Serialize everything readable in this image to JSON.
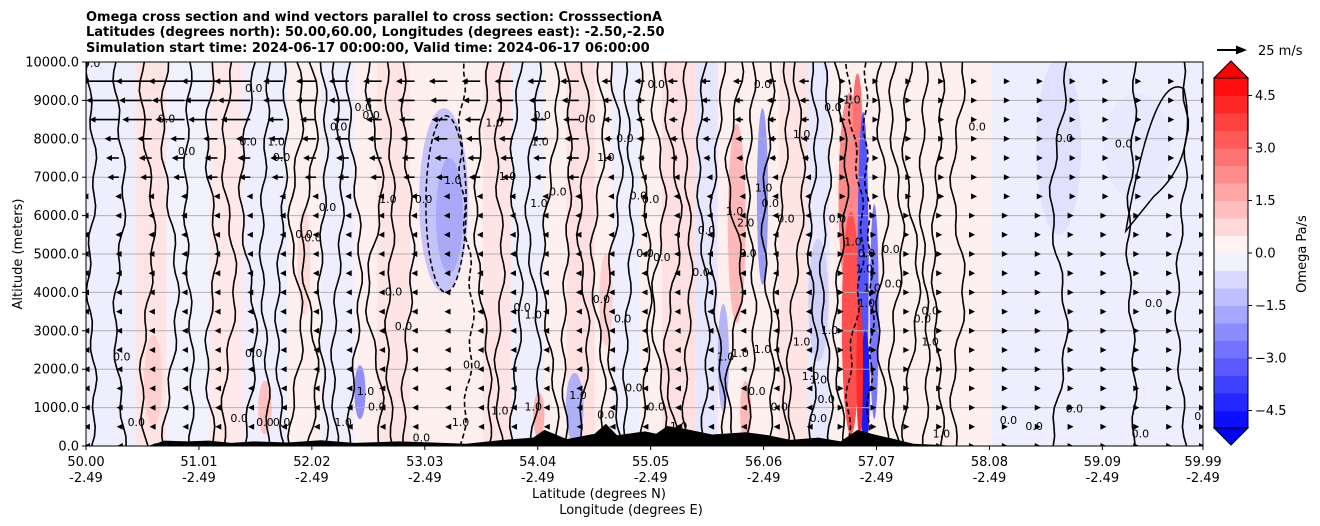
{
  "chart_data": {
    "type": "filled-contour cross section with wind vectors",
    "title_lines": [
      "Omega cross section and wind vectors parallel to cross section: CrosssectionA",
      "Latitudes (degrees north): 50.00,60.00, Longitudes (degrees east): -2.50,-2.50",
      "Simulation start time: 2024-06-17 00:00:00, Valid time: 2024-06-17 06:00:00"
    ],
    "ylabel": "Altitude (meters)",
    "xlabel_lat": "Latitude (degrees N)",
    "xlabel_lon": "Longitude (degrees E)",
    "ylim": [
      0,
      10000
    ],
    "xlim": [
      50.0,
      59.99
    ],
    "yticks": [
      "0.0",
      "1000.0",
      "2000.0",
      "3000.0",
      "4000.0",
      "5000.0",
      "6000.0",
      "7000.0",
      "8000.0",
      "9000.0",
      "10000.0"
    ],
    "xticks": [
      {
        "value": 50.0,
        "lat": "50.00",
        "lon": "-2.49"
      },
      {
        "value": 51.01,
        "lat": "51.01",
        "lon": "-2.49"
      },
      {
        "value": 52.02,
        "lat": "52.02",
        "lon": "-2.49"
      },
      {
        "value": 53.03,
        "lat": "53.03",
        "lon": "-2.49"
      },
      {
        "value": 54.04,
        "lat": "54.04",
        "lon": "-2.49"
      },
      {
        "value": 55.05,
        "lat": "55.05",
        "lon": "-2.49"
      },
      {
        "value": 56.06,
        "lat": "56.06",
        "lon": "-2.49"
      },
      {
        "value": 57.07,
        "lat": "57.07",
        "lon": "-2.49"
      },
      {
        "value": 58.08,
        "lat": "58.08",
        "lon": "-2.49"
      },
      {
        "value": 59.09,
        "lat": "59.09",
        "lon": "-2.49"
      },
      {
        "value": 59.99,
        "lat": "59.99",
        "lon": "-2.49"
      }
    ],
    "colorbar": {
      "label": "Omega Pa/s",
      "range": [
        -5.0,
        5.0
      ],
      "ticks": [
        "4.5",
        "3.0",
        "1.5",
        "0.0",
        "−1.5",
        "−3.0",
        "−4.5"
      ],
      "levels": 20
    },
    "quiver_key": {
      "label": "25 m/s",
      "value": 25
    },
    "contour_labels": [
      {
        "x": 50.05,
        "y": 9950,
        "text": "0.0"
      },
      {
        "x": 50.72,
        "y": 8500,
        "text": "0.0"
      },
      {
        "x": 50.32,
        "y": 2300,
        "text": "0.0"
      },
      {
        "x": 50.45,
        "y": 600,
        "text": "0.0"
      },
      {
        "x": 50.9,
        "y": 7650,
        "text": "0.0"
      },
      {
        "x": 51.5,
        "y": 9300,
        "text": "0.0"
      },
      {
        "x": 51.45,
        "y": 7900,
        "text": "0.0"
      },
      {
        "x": 51.7,
        "y": 7900,
        "text": "1.0"
      },
      {
        "x": 51.75,
        "y": 7500,
        "text": "0.0"
      },
      {
        "x": 51.95,
        "y": 5500,
        "text": "0.0"
      },
      {
        "x": 52.03,
        "y": 5400,
        "text": "0.0"
      },
      {
        "x": 52.16,
        "y": 6200,
        "text": "0.0"
      },
      {
        "x": 52.26,
        "y": 8300,
        "text": "0.0"
      },
      {
        "x": 52.55,
        "y": 8600,
        "text": "0.0"
      },
      {
        "x": 52.48,
        "y": 8800,
        "text": "0.0"
      },
      {
        "x": 52.7,
        "y": 6400,
        "text": "1.0"
      },
      {
        "x": 52.75,
        "y": 4000,
        "text": "0.0"
      },
      {
        "x": 52.84,
        "y": 3100,
        "text": "0.0"
      },
      {
        "x": 53.28,
        "y": 6900,
        "text": "1.0"
      },
      {
        "x": 53.02,
        "y": 6400,
        "text": "0.0"
      },
      {
        "x": 53.65,
        "y": 8400,
        "text": "1.0"
      },
      {
        "x": 54.06,
        "y": 7900,
        "text": "1.0"
      },
      {
        "x": 53.77,
        "y": 7000,
        "text": "1.0"
      },
      {
        "x": 54.22,
        "y": 6600,
        "text": "0.0"
      },
      {
        "x": 54.05,
        "y": 6300,
        "text": "1.0"
      },
      {
        "x": 54.08,
        "y": 8600,
        "text": "0.0"
      },
      {
        "x": 54.48,
        "y": 8500,
        "text": "0.0"
      },
      {
        "x": 54.82,
        "y": 8000,
        "text": "0.0"
      },
      {
        "x": 54.65,
        "y": 7500,
        "text": "1.0"
      },
      {
        "x": 54.61,
        "y": 3800,
        "text": "0.0"
      },
      {
        "x": 54.0,
        "y": 3400,
        "text": "1.0"
      },
      {
        "x": 53.9,
        "y": 3600,
        "text": "0.0"
      },
      {
        "x": 54.8,
        "y": 3300,
        "text": "0.0"
      },
      {
        "x": 54.94,
        "y": 6500,
        "text": "0.0"
      },
      {
        "x": 55.05,
        "y": 6400,
        "text": "0.0"
      },
      {
        "x": 55.0,
        "y": 5000,
        "text": "0.0"
      },
      {
        "x": 55.15,
        "y": 4900,
        "text": "0.0"
      },
      {
        "x": 55.5,
        "y": 4500,
        "text": "0.0"
      },
      {
        "x": 55.55,
        "y": 5600,
        "text": "0.0"
      },
      {
        "x": 55.8,
        "y": 6100,
        "text": "1.0"
      },
      {
        "x": 55.9,
        "y": 5800,
        "text": "2.0"
      },
      {
        "x": 55.92,
        "y": 5000,
        "text": "0.0"
      },
      {
        "x": 56.06,
        "y": 6700,
        "text": "1.0"
      },
      {
        "x": 56.12,
        "y": 6300,
        "text": "0.0"
      },
      {
        "x": 56.26,
        "y": 5900,
        "text": "0.0"
      },
      {
        "x": 56.4,
        "y": 8100,
        "text": "1.0"
      },
      {
        "x": 56.85,
        "y": 9000,
        "text": "1.0"
      },
      {
        "x": 56.68,
        "y": 8800,
        "text": "0.0"
      },
      {
        "x": 56.05,
        "y": 9400,
        "text": "0.0"
      },
      {
        "x": 55.1,
        "y": 9400,
        "text": "0.0"
      },
      {
        "x": 56.72,
        "y": 5900,
        "text": "0.0"
      },
      {
        "x": 56.86,
        "y": 5300,
        "text": "1.0"
      },
      {
        "x": 56.98,
        "y": 5000,
        "text": "0.0"
      },
      {
        "x": 57.2,
        "y": 5100,
        "text": "0.0"
      },
      {
        "x": 56.96,
        "y": 4600,
        "text": "1.0"
      },
      {
        "x": 57.03,
        "y": 4100,
        "text": "1.0"
      },
      {
        "x": 56.98,
        "y": 3700,
        "text": "1.0"
      },
      {
        "x": 57.22,
        "y": 4200,
        "text": "0.0"
      },
      {
        "x": 56.65,
        "y": 3000,
        "text": "1.0"
      },
      {
        "x": 56.48,
        "y": 1800,
        "text": "1.0"
      },
      {
        "x": 56.4,
        "y": 2700,
        "text": "1.0"
      },
      {
        "x": 56.05,
        "y": 2500,
        "text": "1.0"
      },
      {
        "x": 55.85,
        "y": 2400,
        "text": "1.0"
      },
      {
        "x": 55.72,
        "y": 2300,
        "text": "1.0"
      },
      {
        "x": 56.0,
        "y": 1400,
        "text": "0.0"
      },
      {
        "x": 56.2,
        "y": 1000,
        "text": "0.0"
      },
      {
        "x": 56.55,
        "y": 1700,
        "text": "1.0"
      },
      {
        "x": 56.55,
        "y": 700,
        "text": "0.0"
      },
      {
        "x": 56.62,
        "y": 1200,
        "text": "0.0"
      },
      {
        "x": 57.48,
        "y": 3300,
        "text": "0.0"
      },
      {
        "x": 57.55,
        "y": 2700,
        "text": "1.0"
      },
      {
        "x": 57.65,
        "y": 300,
        "text": "1.0"
      },
      {
        "x": 57.97,
        "y": 8300,
        "text": "0.0"
      },
      {
        "x": 58.75,
        "y": 8000,
        "text": "0.0"
      },
      {
        "x": 59.28,
        "y": 7850,
        "text": "0.0"
      },
      {
        "x": 59.55,
        "y": 3700,
        "text": "0.0"
      },
      {
        "x": 59.99,
        "y": 750,
        "text": "0.0"
      },
      {
        "x": 59.43,
        "y": 300,
        "text": "0.0"
      },
      {
        "x": 58.84,
        "y": 950,
        "text": "0.0"
      },
      {
        "x": 58.48,
        "y": 500,
        "text": "0.0"
      },
      {
        "x": 58.25,
        "y": 650,
        "text": "0.0"
      },
      {
        "x": 57.55,
        "y": 3500,
        "text": "0.0"
      },
      {
        "x": 51.37,
        "y": 700,
        "text": "0.0"
      },
      {
        "x": 51.6,
        "y": 600,
        "text": "0.0"
      },
      {
        "x": 51.5,
        "y": 2400,
        "text": "0.0"
      },
      {
        "x": 51.75,
        "y": 600,
        "text": "0.0"
      },
      {
        "x": 52.3,
        "y": 600,
        "text": "1.0"
      },
      {
        "x": 52.5,
        "y": 1400,
        "text": "1.0"
      },
      {
        "x": 52.6,
        "y": 1000,
        "text": "0.0"
      },
      {
        "x": 53.0,
        "y": 200,
        "text": "0.0"
      },
      {
        "x": 53.35,
        "y": 600,
        "text": "1.0"
      },
      {
        "x": 53.7,
        "y": 900,
        "text": "1.0"
      },
      {
        "x": 53.45,
        "y": 2100,
        "text": "0.0"
      },
      {
        "x": 54.0,
        "y": 1000,
        "text": "1.0"
      },
      {
        "x": 54.4,
        "y": 1300,
        "text": "1.0"
      },
      {
        "x": 54.65,
        "y": 800,
        "text": "0.0"
      },
      {
        "x": 54.9,
        "y": 1500,
        "text": "0.0"
      },
      {
        "x": 55.1,
        "y": 1000,
        "text": "0.0"
      },
      {
        "x": 55.3,
        "y": 500,
        "text": "1.0"
      }
    ],
    "terrain_description": "black filled orography along the ground, highest near 54.6-57.1 N (about 600 m)"
  }
}
